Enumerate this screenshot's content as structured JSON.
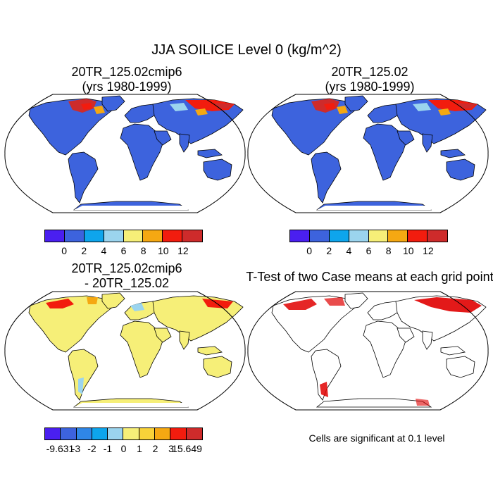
{
  "title": "JJA SOILICE Level 0 (kg/m^2)",
  "panels": {
    "p1": {
      "line1": "20TR_125.02cmip6",
      "line2": "(yrs 1980-1999)"
    },
    "p2": {
      "line1": "20TR_125.02",
      "line2": "(yrs 1980-1999)"
    },
    "p3": {
      "line1": "20TR_125.02cmip6",
      "line2": "- 20TR_125.02"
    },
    "p4": {
      "line1": "T-Test of two Case means at each grid point"
    }
  },
  "colorbar_top": {
    "colors": [
      "#4a1ff0",
      "#3d63dd",
      "#0ea5ec",
      "#9bd4ee",
      "#f6ef78",
      "#f5a812",
      "#f21c0e",
      "#ce2b2b"
    ],
    "labels": [
      "0",
      "2",
      "4",
      "6",
      "8",
      "10",
      "12"
    ]
  },
  "colorbar_diff": {
    "colors": [
      "#4a1ff0",
      "#3d63dd",
      "#2f86e6",
      "#0ea5ec",
      "#9bd4ee",
      "#f6ef78",
      "#f8d239",
      "#f5a812",
      "#f21c0e",
      "#ce2b2b"
    ],
    "labels": [
      "-9.631",
      "-3",
      "-2",
      "-1",
      "0",
      "1",
      "2",
      "3",
      "15.649"
    ]
  },
  "significance_note": "Cells are significant at 0.1 level",
  "map_fill_colors": {
    "mean_land": "#3d63dd",
    "diff_land": "#f6ef78",
    "ttest_land": "#ffffff",
    "significant": "#e00000",
    "high_ice": [
      "#f21c0e",
      "#ce2b2b",
      "#f5a812",
      "#9bd4ee"
    ]
  }
}
